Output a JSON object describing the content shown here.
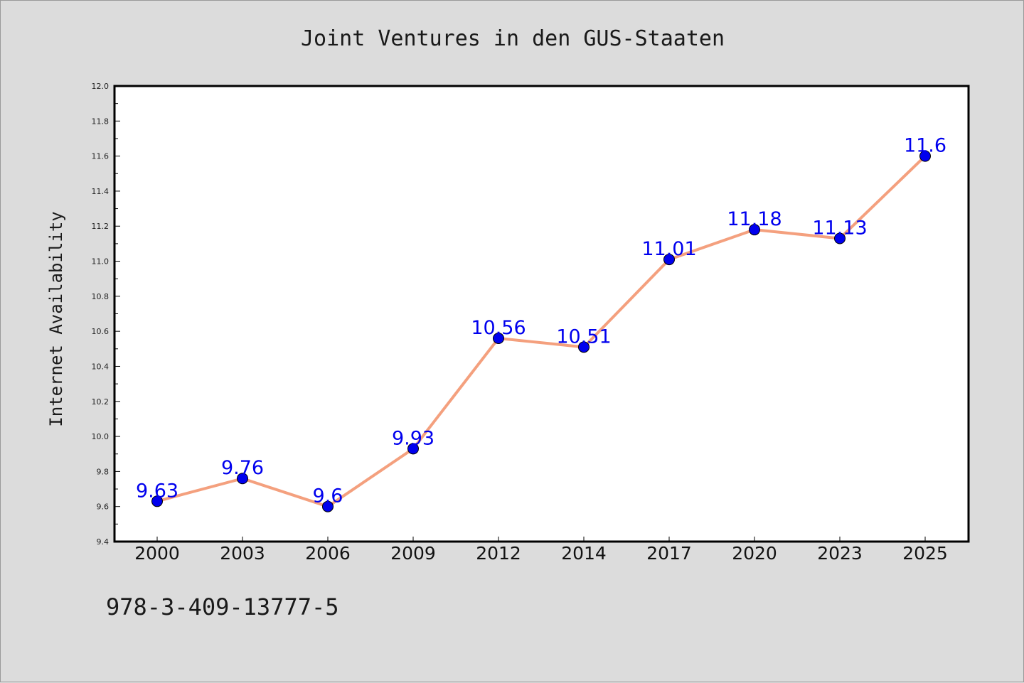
{
  "chart_data": {
    "type": "line",
    "title": "Joint Ventures in den GUS-Staaten",
    "xlabel": "",
    "ylabel": "Internet Availability",
    "categories": [
      "2000",
      "2003",
      "2006",
      "2009",
      "2012",
      "2014",
      "2017",
      "2020",
      "2023",
      "2025"
    ],
    "series": [
      {
        "values": [
          9.63,
          9.76,
          9.6,
          9.93,
          10.56,
          10.51,
          11.01,
          11.18,
          11.13,
          11.6
        ],
        "labels": [
          "9.63",
          "9.76",
          "9.6",
          "9.93",
          "10.56",
          "10.51",
          "11.01",
          "11.18",
          "11.13",
          "11.6"
        ],
        "line_color": "#f4a07e",
        "marker_color": "#0000ee",
        "label_color": "#0000ee"
      }
    ],
    "ylim": [
      9.4,
      12.0
    ],
    "yticks": [
      "9.4",
      "9.6",
      "9.8",
      "10.0",
      "10.2",
      "10.4",
      "10.6",
      "10.8",
      "11.0",
      "11.2",
      "11.4",
      "11.6",
      "11.8",
      "12.0"
    ],
    "grid": false,
    "legend": "none"
  },
  "footnote": "978-3-409-13777-5",
  "colors": {
    "background": "#dcdcdc",
    "plot_background": "#ffffff",
    "axis": "#000000"
  }
}
